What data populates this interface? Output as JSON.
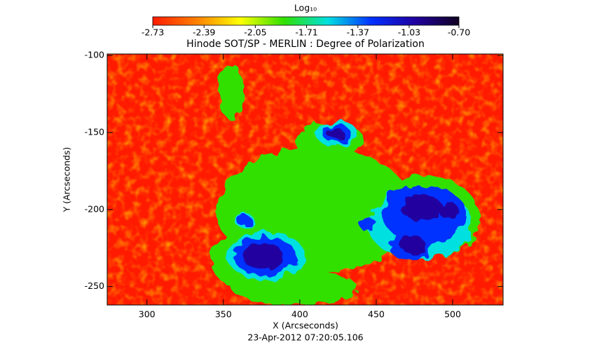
{
  "chart_data": {
    "type": "image",
    "title": "Hinode SOT/SP - MERLIN : Degree of Polarization",
    "xlabel": "X (Arcseconds)",
    "ylabel": "Y (Arcseconds)",
    "footer": "23-Apr-2012 07:20:05.106",
    "xlim": [
      274,
      533
    ],
    "ylim": [
      -262,
      -99
    ],
    "xticks": [
      300,
      350,
      400,
      450,
      500
    ],
    "yticks": [
      -100,
      -150,
      -200,
      -250
    ],
    "colorbar_label": "Log₁₀",
    "clim": [
      -2.73,
      -0.7
    ],
    "cticks": [
      -2.73,
      -2.39,
      -2.05,
      -1.71,
      -1.37,
      -1.03,
      {
        "value": -0.7,
        "label": "-0.70"
      }
    ],
    "colormap": [
      "#ff1a00",
      "#ff8000",
      "#ffff00",
      "#30e000",
      "#00e0e0",
      "#0030ff",
      "#2000a0",
      "#100020"
    ]
  }
}
